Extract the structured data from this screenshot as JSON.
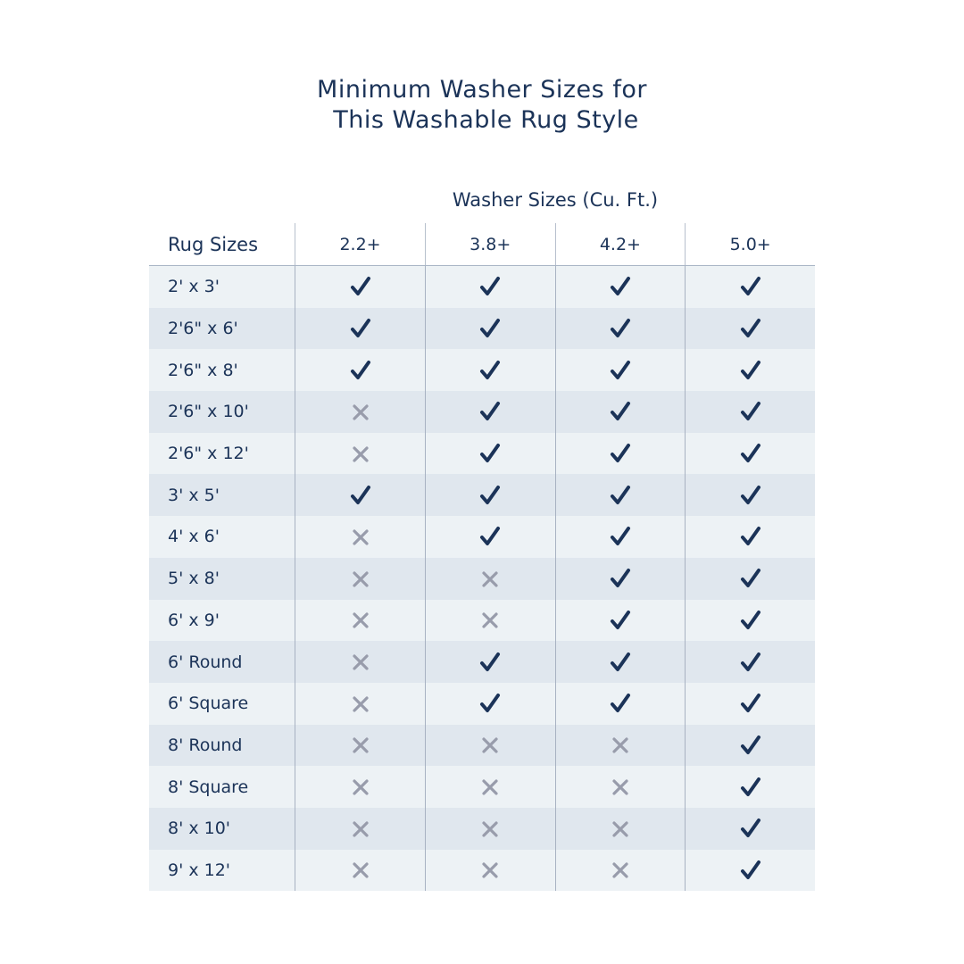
{
  "title_lines": [
    "Minimum Washer Sizes for",
    " This Washable Rug Style"
  ],
  "column_group_label": "Washer Sizes (Cu. Ft.)",
  "row_header": "Rug Sizes",
  "columns": [
    "2.2+",
    "3.8+",
    "4.2+",
    "5.0+"
  ],
  "colors": {
    "text": "#1b3358",
    "check": "#1b3358",
    "cross": "#989cab",
    "row_light": "#edf2f5",
    "row_dark": "#e0e7ee"
  },
  "rows": [
    {
      "size": "2' x 3'",
      "fits": [
        true,
        true,
        true,
        true
      ]
    },
    {
      "size": "2'6\" x 6'",
      "fits": [
        true,
        true,
        true,
        true
      ]
    },
    {
      "size": "2'6\" x 8'",
      "fits": [
        true,
        true,
        true,
        true
      ]
    },
    {
      "size": "2'6\" x 10'",
      "fits": [
        false,
        true,
        true,
        true
      ]
    },
    {
      "size": "2'6\" x 12'",
      "fits": [
        false,
        true,
        true,
        true
      ]
    },
    {
      "size": "3' x 5'",
      "fits": [
        true,
        true,
        true,
        true
      ]
    },
    {
      "size": "4' x 6'",
      "fits": [
        false,
        true,
        true,
        true
      ]
    },
    {
      "size": "5' x 8'",
      "fits": [
        false,
        false,
        true,
        true
      ]
    },
    {
      "size": "6' x 9'",
      "fits": [
        false,
        false,
        true,
        true
      ]
    },
    {
      "size": "6' Round",
      "fits": [
        false,
        true,
        true,
        true
      ]
    },
    {
      "size": "6' Square",
      "fits": [
        false,
        true,
        true,
        true
      ]
    },
    {
      "size": "8' Round",
      "fits": [
        false,
        false,
        false,
        true
      ]
    },
    {
      "size": "8' Square",
      "fits": [
        false,
        false,
        false,
        true
      ]
    },
    {
      "size": "8' x 10'",
      "fits": [
        false,
        false,
        false,
        true
      ]
    },
    {
      "size": "9' x 12'",
      "fits": [
        false,
        false,
        false,
        true
      ]
    }
  ]
}
